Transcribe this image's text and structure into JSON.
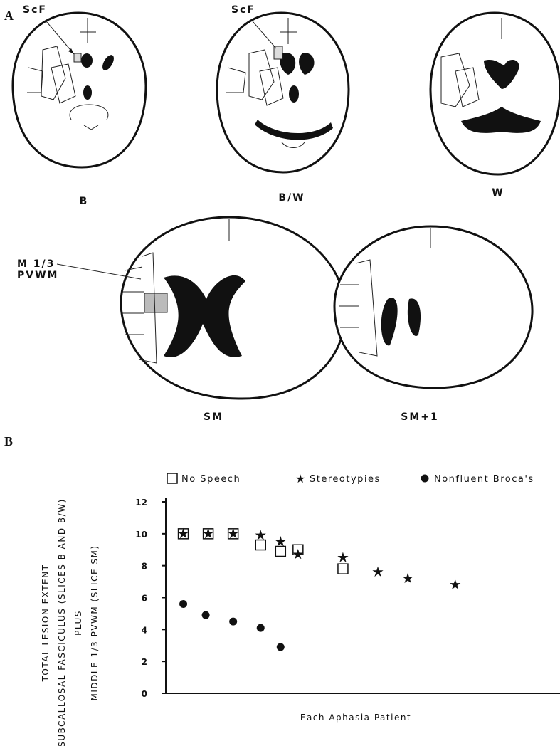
{
  "figure": {
    "panels": [
      "A",
      "B"
    ],
    "scf_labels": [
      "ScF",
      "ScF"
    ],
    "slice_labels": [
      "B",
      "B/W",
      "W",
      "SM",
      "SM+1"
    ],
    "region_label": [
      "M 1/3",
      "PVWM"
    ]
  },
  "chart_data": {
    "type": "scatter",
    "xlabel": "Each Aphasia Patient",
    "ylabel": [
      "TOTAL LESION EXTENT",
      "SUBCALLOSAL FASCICULUS (SLICES B AND B/W)",
      "PLUS",
      "MIDDLE 1/3 PVWM (SLICE SM)"
    ],
    "xlim": [
      0.3,
      16.1
    ],
    "ylim": [
      0,
      12
    ],
    "yticks": [
      0,
      2,
      4,
      6,
      8,
      10,
      12
    ],
    "series": [
      {
        "name": "No Speech",
        "marker": "square",
        "color": "#111111",
        "x": [
          1,
          2,
          3,
          4.1,
          4.9,
          5.6,
          7.4
        ],
        "values": [
          10,
          10,
          10,
          9.3,
          8.9,
          9.0,
          7.8
        ]
      },
      {
        "name": "Stereotypies",
        "marker": "star",
        "color": "#111111",
        "x": [
          1,
          2,
          3,
          4.1,
          4.9,
          5.6,
          7.4,
          8.8,
          10,
          11.9
        ],
        "values": [
          10,
          10,
          10,
          9.9,
          9.5,
          8.7,
          8.5,
          7.6,
          7.2,
          6.8
        ]
      },
      {
        "name": "Nonfluent Broca's",
        "marker": "circle",
        "color": "#111111",
        "x": [
          1,
          1.9,
          3,
          4.1,
          4.9
        ],
        "values": [
          5.6,
          4.9,
          4.5,
          4.1,
          2.9
        ]
      }
    ]
  }
}
